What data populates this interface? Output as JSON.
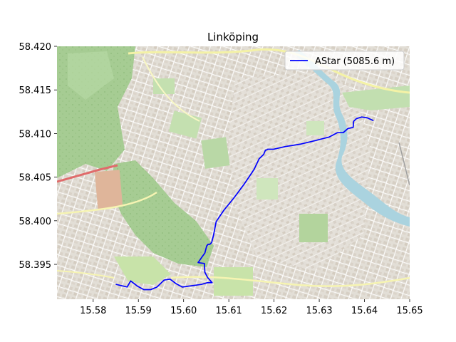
{
  "chart_data": {
    "type": "line",
    "title": "Linköping",
    "xlabel": "",
    "ylabel": "",
    "xlim": [
      15.572,
      15.65
    ],
    "ylim": [
      58.391,
      58.42
    ],
    "xticks": [
      15.58,
      15.59,
      15.6,
      15.61,
      15.62,
      15.63,
      15.64,
      15.65
    ],
    "xtick_labels": [
      "15.58",
      "15.59",
      "15.60",
      "15.61",
      "15.62",
      "15.63",
      "15.64",
      "15.65"
    ],
    "yticks": [
      58.395,
      58.4,
      58.405,
      58.41,
      58.415,
      58.42
    ],
    "ytick_labels": [
      "58.395",
      "58.400",
      "58.405",
      "58.410",
      "58.415",
      "58.420"
    ],
    "grid": false,
    "legend_position": "top-right",
    "background": "map tiles",
    "series": [
      {
        "name": "AStar (5085.6 m)",
        "color": "#0000ff",
        "x": [
          15.5851,
          15.5875,
          15.5883,
          15.5898,
          15.5912,
          15.5927,
          15.5941,
          15.5957,
          15.597,
          15.5983,
          15.5997,
          15.6011,
          15.6025,
          15.6039,
          15.6053,
          15.6063,
          15.6053,
          15.6047,
          15.6046,
          15.6032,
          15.604,
          15.6047,
          15.6051,
          15.6054,
          15.6058,
          15.6062,
          15.6066,
          15.6072,
          15.6089,
          15.6111,
          15.6134,
          15.6156,
          15.6167,
          15.6177,
          15.6181,
          15.6183,
          15.6186,
          15.6199,
          15.6224,
          15.626,
          15.6292,
          15.6322,
          15.634,
          15.6353,
          15.6364,
          15.6366,
          15.6375,
          15.6376,
          15.6382,
          15.6394,
          15.6406,
          15.6419
        ],
        "y": [
          58.3927,
          58.3924,
          58.3931,
          58.3925,
          58.3921,
          58.3921,
          58.3924,
          58.3932,
          58.3933,
          58.3928,
          58.3924,
          58.3925,
          58.3926,
          58.3927,
          58.3929,
          58.3929,
          58.3935,
          58.3941,
          58.3951,
          58.3952,
          58.3958,
          58.3963,
          58.3971,
          58.3973,
          58.3973,
          58.3975,
          58.3983,
          58.3999,
          58.4012,
          58.4026,
          58.4042,
          58.4059,
          58.4071,
          58.4076,
          58.4081,
          58.4081,
          58.4082,
          58.4082,
          58.4085,
          58.4088,
          58.4092,
          58.4096,
          58.4101,
          58.4101,
          58.4106,
          58.4106,
          58.4107,
          58.4114,
          58.4117,
          58.4119,
          58.4118,
          58.4115
        ]
      }
    ]
  },
  "colors": {
    "route": "#0000ff",
    "map_green": "#add19e",
    "map_residential": "#e0dfdf",
    "map_water": "#aad3df"
  }
}
